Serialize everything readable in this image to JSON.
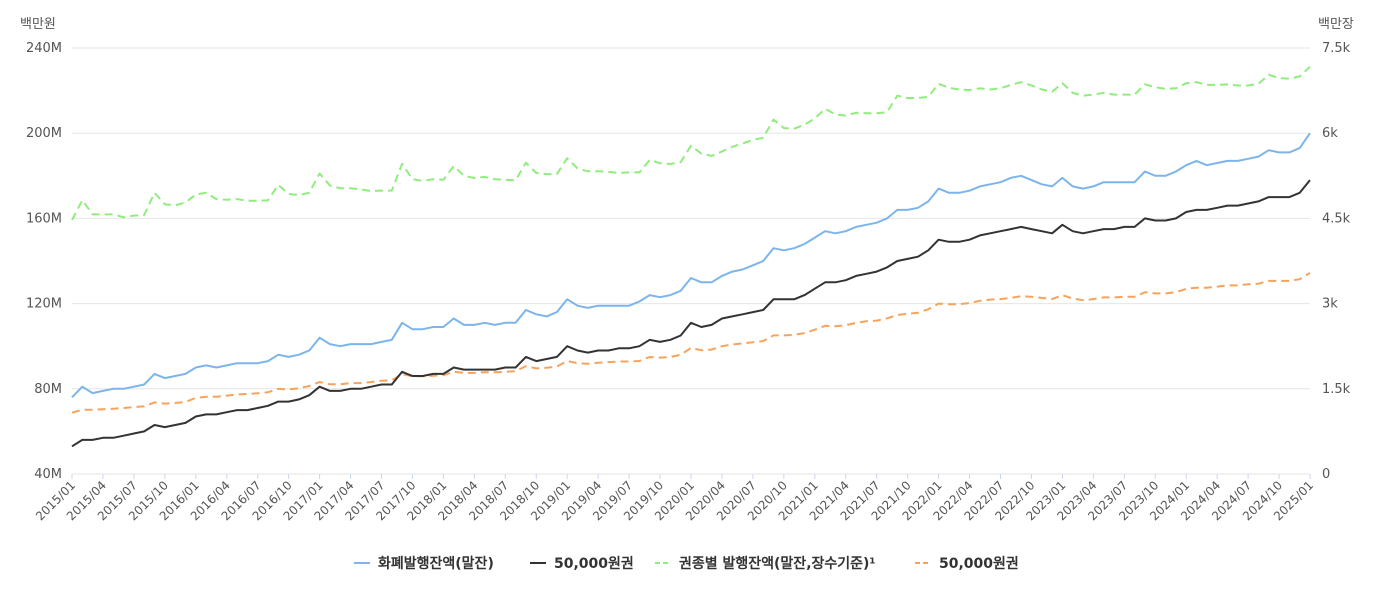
{
  "chart_data": {
    "type": "line",
    "left_axis_unit": "백만원",
    "right_axis_unit": "백만장",
    "left_ticks": [
      "40M",
      "80M",
      "120M",
      "160M",
      "200M",
      "240M"
    ],
    "left_tick_values": [
      40,
      80,
      120,
      160,
      200,
      240
    ],
    "right_ticks": [
      "0",
      "1.5k",
      "3k",
      "4.5k",
      "6k",
      "7.5k"
    ],
    "right_tick_values": [
      0,
      1500,
      3000,
      4500,
      6000,
      7500
    ],
    "ylim_left": [
      40,
      240
    ],
    "ylim_right": [
      0,
      7500
    ],
    "x_tick_labels": [
      "2015/01",
      "2015/04",
      "2015/07",
      "2015/10",
      "2016/01",
      "2016/04",
      "2016/07",
      "2016/10",
      "2017/01",
      "2017/04",
      "2017/07",
      "2017/10",
      "2018/01",
      "2018/04",
      "2018/07",
      "2018/10",
      "2019/01",
      "2019/04",
      "2019/07",
      "2019/10",
      "2020/01",
      "2020/04",
      "2020/07",
      "2020/10",
      "2021/01",
      "2021/04",
      "2021/07",
      "2021/10",
      "2022/01",
      "2022/04",
      "2022/07",
      "2022/10",
      "2023/01",
      "2023/04",
      "2023/07",
      "2023/10",
      "2024/01",
      "2024/04",
      "2024/07",
      "2024/10",
      "2025/01"
    ],
    "x_start": "2015/01",
    "x_end": "2025/01",
    "grid": true,
    "legend_position": "bottom",
    "series": [
      {
        "name": "화폐발행잔액(말잔)",
        "axis": "left",
        "color": "#7cb5ec",
        "dash": "solid",
        "values": [
          76,
          81,
          78,
          79,
          80,
          80,
          81,
          82,
          87,
          85,
          86,
          87,
          90,
          91,
          90,
          91,
          92,
          92,
          92,
          93,
          96,
          95,
          96,
          98,
          104,
          101,
          100,
          101,
          101,
          101,
          102,
          103,
          111,
          108,
          108,
          109,
          109,
          113,
          110,
          110,
          111,
          110,
          111,
          111,
          117,
          115,
          114,
          116,
          122,
          119,
          118,
          119,
          119,
          119,
          119,
          121,
          124,
          123,
          124,
          126,
          132,
          130,
          130,
          133,
          135,
          136,
          138,
          140,
          146,
          145,
          146,
          148,
          151,
          154,
          153,
          154,
          156,
          157,
          158,
          160,
          164,
          164,
          165,
          168,
          174,
          172,
          172,
          173,
          175,
          176,
          177,
          179,
          180,
          178,
          176,
          175,
          179,
          175,
          174,
          175,
          177,
          177,
          177,
          177,
          182,
          180,
          180,
          182,
          185,
          187,
          185,
          186,
          187,
          187,
          188,
          189,
          192,
          191,
          191,
          193,
          200
        ]
      },
      {
        "name": "50,000원권",
        "axis": "left",
        "color": "#333333",
        "dash": "solid",
        "values": [
          53,
          56,
          56,
          57,
          57,
          58,
          59,
          60,
          63,
          62,
          63,
          64,
          67,
          68,
          68,
          69,
          70,
          70,
          71,
          72,
          74,
          74,
          75,
          77,
          81,
          79,
          79,
          80,
          80,
          81,
          82,
          82,
          88,
          86,
          86,
          87,
          87,
          90,
          89,
          89,
          89,
          89,
          90,
          90,
          95,
          93,
          94,
          95,
          100,
          98,
          97,
          98,
          98,
          99,
          99,
          100,
          103,
          102,
          103,
          105,
          111,
          109,
          110,
          113,
          114,
          115,
          116,
          117,
          122,
          122,
          122,
          124,
          127,
          130,
          130,
          131,
          133,
          134,
          135,
          137,
          140,
          141,
          142,
          145,
          150,
          149,
          149,
          150,
          152,
          153,
          154,
          155,
          156,
          155,
          154,
          153,
          157,
          154,
          153,
          154,
          155,
          155,
          156,
          156,
          160,
          159,
          159,
          160,
          163,
          164,
          164,
          165,
          166,
          166,
          167,
          168,
          170,
          170,
          170,
          172,
          178
        ]
      },
      {
        "name": "권종별 발행잔액(말잔,장수기준)¹",
        "axis": "right",
        "color": "#90ed7d",
        "dash": "dashed",
        "values": [
          4470,
          4820,
          4570,
          4570,
          4570,
          4520,
          4550,
          4560,
          4950,
          4750,
          4730,
          4780,
          4920,
          4950,
          4840,
          4830,
          4840,
          4810,
          4810,
          4820,
          5090,
          4930,
          4910,
          4950,
          5290,
          5080,
          5030,
          5030,
          5010,
          4980,
          4990,
          4990,
          5460,
          5190,
          5160,
          5190,
          5180,
          5420,
          5250,
          5210,
          5230,
          5190,
          5180,
          5170,
          5480,
          5300,
          5280,
          5280,
          5560,
          5380,
          5330,
          5330,
          5320,
          5300,
          5310,
          5310,
          5530,
          5470,
          5460,
          5490,
          5780,
          5640,
          5600,
          5680,
          5760,
          5820,
          5880,
          5920,
          6240,
          6090,
          6080,
          6150,
          6260,
          6430,
          6330,
          6310,
          6360,
          6350,
          6350,
          6370,
          6660,
          6620,
          6620,
          6640,
          6870,
          6800,
          6770,
          6760,
          6790,
          6770,
          6790,
          6850,
          6900,
          6840,
          6770,
          6730,
          6880,
          6710,
          6660,
          6680,
          6710,
          6680,
          6680,
          6680,
          6860,
          6810,
          6780,
          6790,
          6880,
          6900,
          6850,
          6850,
          6860,
          6840,
          6840,
          6870,
          7030,
          6970,
          6960,
          7000,
          7170
        ]
      },
      {
        "name": "50,000원권",
        "axis": "right",
        "color": "#f7a35c",
        "dash": "dashed",
        "values": [
          1080,
          1130,
          1130,
          1140,
          1150,
          1160,
          1180,
          1190,
          1260,
          1240,
          1250,
          1270,
          1340,
          1360,
          1360,
          1380,
          1400,
          1410,
          1420,
          1440,
          1500,
          1490,
          1510,
          1550,
          1620,
          1580,
          1580,
          1600,
          1600,
          1620,
          1640,
          1650,
          1760,
          1720,
          1720,
          1730,
          1740,
          1800,
          1780,
          1780,
          1790,
          1790,
          1800,
          1810,
          1900,
          1860,
          1870,
          1890,
          1990,
          1950,
          1940,
          1960,
          1970,
          1980,
          1980,
          1990,
          2060,
          2050,
          2060,
          2100,
          2220,
          2180,
          2190,
          2250,
          2280,
          2300,
          2320,
          2340,
          2440,
          2440,
          2450,
          2480,
          2540,
          2610,
          2600,
          2620,
          2660,
          2690,
          2700,
          2740,
          2800,
          2820,
          2840,
          2900,
          3000,
          2990,
          2990,
          3010,
          3050,
          3070,
          3080,
          3100,
          3130,
          3120,
          3100,
          3080,
          3150,
          3090,
          3060,
          3080,
          3110,
          3110,
          3120,
          3120,
          3200,
          3180,
          3180,
          3200,
          3260,
          3280,
          3280,
          3300,
          3320,
          3320,
          3340,
          3350,
          3400,
          3400,
          3400,
          3430,
          3540
        ]
      }
    ]
  }
}
